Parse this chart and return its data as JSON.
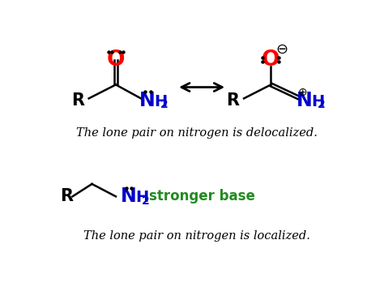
{
  "bg_color": "#ffffff",
  "text_delocalized": "The lone pair on nitrogen is delocalized.",
  "text_localized": "The lone pair on nitrogen is localized.",
  "text_stronger": "stronger base",
  "text_color": "#000000",
  "green_color": "#228B22",
  "red_color": "#ff0000",
  "blue_color": "#0000cc",
  "figsize": [
    4.74,
    3.7
  ],
  "dpi": 100
}
